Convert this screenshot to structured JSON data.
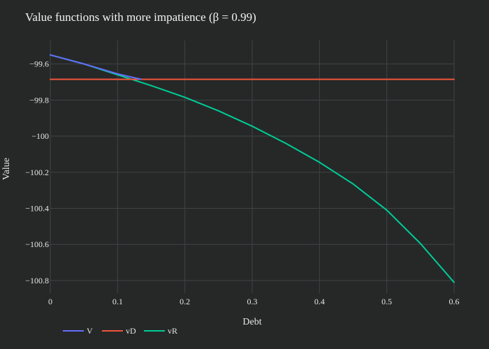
{
  "chart_data": {
    "type": "line",
    "title": "Value functions with more impatience (β = 0.99)",
    "xlabel": "Debt",
    "ylabel": "Value",
    "xlim": [
      0,
      0.6
    ],
    "ylim": [
      -100.87,
      -99.47
    ],
    "x_ticks": [
      0,
      0.1,
      0.2,
      0.3,
      0.4,
      0.5,
      0.6
    ],
    "x_tick_labels": [
      "0",
      "0.1",
      "0.2",
      "0.3",
      "0.4",
      "0.5",
      "0.6"
    ],
    "y_ticks": [
      -99.6,
      -99.8,
      -100,
      -100.2,
      -100.4,
      -100.6,
      -100.8
    ],
    "y_tick_labels": [
      "−99.6",
      "−99.8",
      "−100",
      "−100.2",
      "−100.4",
      "−100.6",
      "−100.8"
    ],
    "grid": true,
    "legend_position": "bottom-left",
    "series": [
      {
        "name": "V",
        "color": "#636efa",
        "x": [
          0,
          0.05,
          0.1,
          0.135
        ],
        "y": [
          -99.55,
          -99.6,
          -99.655,
          -99.685
        ]
      },
      {
        "name": "vD",
        "color": "#ef553b",
        "x": [
          0,
          0.6
        ],
        "y": [
          -99.685,
          -99.685
        ]
      },
      {
        "name": "vR",
        "color": "#00cc96",
        "x": [
          0,
          0.05,
          0.1,
          0.15,
          0.2,
          0.25,
          0.3,
          0.35,
          0.4,
          0.45,
          0.5,
          0.55,
          0.6
        ],
        "y": [
          -99.55,
          -99.6,
          -99.66,
          -99.72,
          -99.785,
          -99.86,
          -99.945,
          -100.04,
          -100.145,
          -100.265,
          -100.41,
          -100.595,
          -100.81
        ]
      }
    ]
  }
}
